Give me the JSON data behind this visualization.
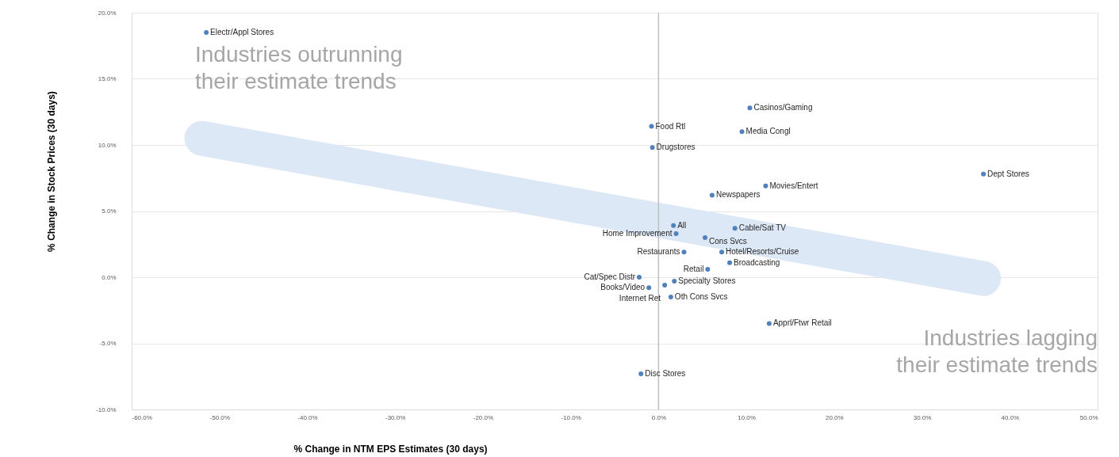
{
  "chart_data": {
    "type": "scatter",
    "xlabel": "% Change in NTM EPS Estimates (30 days)",
    "ylabel": "% Change in Stock Prices (30 days)",
    "xlim": [
      -60,
      50
    ],
    "ylim": [
      -10,
      20
    ],
    "xticks": [
      {
        "value": -60,
        "label": "-60.0%"
      },
      {
        "value": -50,
        "label": "-50.0%"
      },
      {
        "value": -40,
        "label": "-40.0%"
      },
      {
        "value": -30,
        "label": "-30.0%"
      },
      {
        "value": -20,
        "label": "-20.0%"
      },
      {
        "value": -10,
        "label": "-10.0%"
      },
      {
        "value": 0,
        "label": "0.0%"
      },
      {
        "value": 10,
        "label": "10.0%"
      },
      {
        "value": 20,
        "label": "20.0%"
      },
      {
        "value": 30,
        "label": "30.0%"
      },
      {
        "value": 40,
        "label": "40.0%"
      },
      {
        "value": 50,
        "label": "50.0%"
      }
    ],
    "yticks": [
      {
        "value": -10,
        "label": "-10.0%"
      },
      {
        "value": -5,
        "label": "-5.0%"
      },
      {
        "value": 0,
        "label": "0.0%"
      },
      {
        "value": 5,
        "label": "5.0%"
      },
      {
        "value": 10,
        "label": "10.0%"
      },
      {
        "value": 15,
        "label": "15.0%"
      },
      {
        "value": 20,
        "label": "20.0%"
      }
    ],
    "grid": "y",
    "marker": "circle",
    "ref_lines": [
      {
        "axis": "x",
        "value": 0,
        "color": "#bfbfbf"
      }
    ],
    "annotations": [
      "Industries outrunning\ntheir estimate trends",
      "Industries lagging\ntheir estimate trends"
    ],
    "series": [
      {
        "type": "line",
        "marker": "none",
        "color": "#dce8f6",
        "x": [
          -52,
          37
        ],
        "values": [
          10.5,
          -0.1
        ]
      },
      {
        "name": "Electr/Appl Stores",
        "color": "#4f81bd",
        "x": [
          -51.5
        ],
        "values": [
          18.5
        ]
      },
      {
        "name": "Food Rtl",
        "color": "#4f81bd",
        "x": [
          -0.8
        ],
        "values": [
          11.4
        ]
      },
      {
        "name": "Drugstores",
        "color": "#4f81bd",
        "x": [
          -0.7
        ],
        "values": [
          9.8
        ]
      },
      {
        "name": "Casinos/Gaming",
        "color": "#4f81bd",
        "x": [
          10.4
        ],
        "values": [
          12.8
        ]
      },
      {
        "name": "Media Congl",
        "color": "#4f81bd",
        "x": [
          9.5
        ],
        "values": [
          11.0
        ]
      },
      {
        "name": "Dept Stores",
        "color": "#4f81bd",
        "x": [
          37.0
        ],
        "values": [
          7.8
        ]
      },
      {
        "name": "Movies/Entert",
        "color": "#4f81bd",
        "x": [
          12.2
        ],
        "values": [
          6.9
        ]
      },
      {
        "name": "Newspapers",
        "color": "#4f81bd",
        "x": [
          6.1
        ],
        "values": [
          6.2
        ]
      },
      {
        "name": "All",
        "color": "#4f81bd",
        "x": [
          1.7
        ],
        "values": [
          3.9
        ]
      },
      {
        "name": "Cable/Sat TV",
        "color": "#4f81bd",
        "x": [
          8.7
        ],
        "values": [
          3.7
        ]
      },
      {
        "name": "Home Improvement",
        "color": "#4f81bd",
        "x": [
          2.0
        ],
        "values": [
          3.3
        ]
      },
      {
        "name": "Cons Svcs",
        "color": "#4f81bd",
        "x": [
          5.3
        ],
        "values": [
          3.0
        ]
      },
      {
        "name": "Restaurants",
        "color": "#4f81bd",
        "x": [
          2.9
        ],
        "values": [
          1.9
        ]
      },
      {
        "name": "Hotel/Resorts/Cruise",
        "color": "#4f81bd",
        "x": [
          7.2
        ],
        "values": [
          1.9
        ]
      },
      {
        "name": "Broadcasting",
        "color": "#4f81bd",
        "x": [
          8.1
        ],
        "values": [
          1.1
        ]
      },
      {
        "name": "Retail",
        "color": "#4f81bd",
        "x": [
          5.6
        ],
        "values": [
          0.6
        ]
      },
      {
        "name": "Cat/Spec Distr",
        "color": "#4f81bd",
        "x": [
          -2.2
        ],
        "values": [
          0.0
        ]
      },
      {
        "name": "Specialty Stores",
        "color": "#4f81bd",
        "x": [
          1.8
        ],
        "values": [
          -0.3
        ]
      },
      {
        "name": "Books/Video",
        "color": "#4f81bd",
        "x": [
          -1.1
        ],
        "values": [
          -0.8
        ]
      },
      {
        "name": "Internet Ret",
        "color": "#4f81bd",
        "x": [
          0.7
        ],
        "values": [
          -0.6
        ]
      },
      {
        "name": "Oth Cons Svcs",
        "color": "#4f81bd",
        "x": [
          1.4
        ],
        "values": [
          -1.5
        ]
      },
      {
        "name": "Apprl/Ftwr Retail",
        "color": "#4f81bd",
        "x": [
          12.6
        ],
        "values": [
          -3.5
        ]
      },
      {
        "name": "Disc Stores",
        "color": "#4f81bd",
        "x": [
          -2.0
        ],
        "values": [
          -7.3
        ]
      }
    ]
  }
}
